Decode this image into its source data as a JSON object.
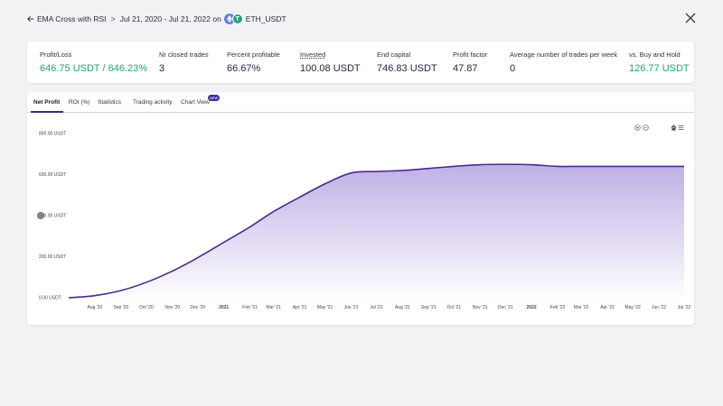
{
  "header": {
    "back_label": "EMA Cross with RSI",
    "separator": ">",
    "date_range": "Jul 21, 2020 - Jul 21, 2022 on",
    "pair": "ETH_USDT",
    "icons": {
      "back": "arrow-left-icon",
      "close": "close-icon",
      "base": "ethereum-icon",
      "quote": "tether-icon"
    }
  },
  "stats": [
    {
      "label": "Profit/Loss",
      "value": "646.75 USDT / 646.23%",
      "color": "#1fa57a"
    },
    {
      "label": "Nr closed trades",
      "value": "3"
    },
    {
      "label": "Percent profitable",
      "value": "66.67%"
    },
    {
      "label": "Invested",
      "value": "100.08 USDT"
    },
    {
      "label": "End capital",
      "value": "746.83 USDT"
    },
    {
      "label": "Profit factor",
      "value": "47.87"
    },
    {
      "label": "Average number of trades per week",
      "value": "0"
    },
    {
      "label": "vs. Buy and Hold",
      "value": "126.77 USDT",
      "color": "#1fa57a"
    }
  ],
  "tabs": [
    {
      "label": "Net Profit",
      "active": true
    },
    {
      "label": "ROI (%)"
    },
    {
      "label": "Statistics"
    },
    {
      "label": "Trading activity"
    },
    {
      "label": "Chart View",
      "badge": "NEW"
    }
  ],
  "chart_tools": {
    "zoom_in": "zoom-in-icon",
    "zoom_out": "zoom-out-icon",
    "home": "home-icon",
    "menu": "menu-icon"
  },
  "chart_data": {
    "type": "area",
    "title": "",
    "xlabel": "",
    "ylabel": "",
    "ylim": [
      0,
      800
    ],
    "y_ticks": [
      "0.00 USDT",
      "200.00 USDT",
      "400.00 USDT",
      "600.00 USDT",
      "800.00 USDT"
    ],
    "categories": [
      "Aug '20",
      "Sep '20",
      "Oct '20",
      "Nov '20",
      "Dec '20",
      "2021",
      "Feb '21",
      "Mar '21",
      "Apr '21",
      "May '21",
      "Jun '21",
      "Jul '21",
      "Aug '21",
      "Sep '21",
      "Oct '21",
      "Nov '21",
      "Dec '21",
      "2022",
      "Feb '22",
      "Mar '22",
      "Apr '22",
      "May '22",
      "Jun '22",
      "Jul '22"
    ],
    "bold_categories": [
      "2021",
      "2022"
    ],
    "x": [
      "2020-07-21",
      "2020-08-21",
      "2020-09-21",
      "2020-10-21",
      "2020-11-21",
      "2020-12-21",
      "2021-01-21",
      "2021-02-21",
      "2021-03-21",
      "2021-04-21",
      "2021-05-21",
      "2021-06-21",
      "2021-07-21",
      "2021-08-21",
      "2021-09-21",
      "2021-10-21",
      "2021-11-21",
      "2021-12-21",
      "2022-01-21",
      "2022-02-21",
      "2022-03-21",
      "2022-04-21",
      "2022-05-21",
      "2022-06-21",
      "2022-07-21"
    ],
    "series": [
      {
        "values": [
          0,
          10,
          35,
          75,
          130,
          195,
          270,
          345,
          420,
          490,
          555,
          608,
          615,
          620,
          630,
          640,
          648,
          650,
          648,
          640,
          640,
          640,
          640,
          640,
          640
        ],
        "color": "#4a2a8a"
      }
    ]
  }
}
